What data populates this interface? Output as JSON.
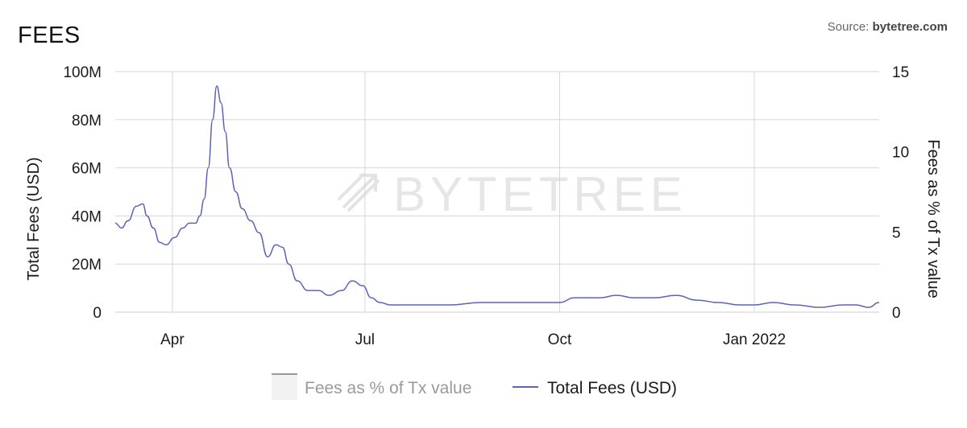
{
  "header": {
    "title": "FEES",
    "source_prefix": "Source: ",
    "source_name": "bytetree.com"
  },
  "watermark": "BYTETREE",
  "colors": {
    "total_fees": "#5b64b7",
    "fees_pct": "#9a9a9a",
    "grid": "#d6d6d6"
  },
  "chart_data": {
    "type": "line",
    "ylabel": "Total Fees (USD)",
    "y2label": "Fees as % of Tx value",
    "ylim": [
      0,
      100
    ],
    "y2lim": [
      0,
      15
    ],
    "xlim": [
      "2021-03-05",
      "2022-03-01"
    ],
    "yticks": [
      {
        "value": 0,
        "label": "0"
      },
      {
        "value": 20,
        "label": "20M"
      },
      {
        "value": 40,
        "label": "40M"
      },
      {
        "value": 60,
        "label": "60M"
      },
      {
        "value": 80,
        "label": "80M"
      },
      {
        "value": 100,
        "label": "100M"
      }
    ],
    "y2ticks": [
      {
        "value": 0,
        "label": "0"
      },
      {
        "value": 5,
        "label": "5"
      },
      {
        "value": 10,
        "label": "10"
      },
      {
        "value": 15,
        "label": "15"
      }
    ],
    "xticks": [
      {
        "date": "2021-04-01",
        "label": "Apr"
      },
      {
        "date": "2021-07-01",
        "label": "Jul"
      },
      {
        "date": "2021-10-01",
        "label": "Oct"
      },
      {
        "date": "2022-01-01",
        "label": "Jan 2022"
      }
    ],
    "grid": true,
    "legend": "bottom-center",
    "series": [
      {
        "name": "Fees as % of Tx value",
        "axis": "right",
        "visible": false,
        "values": []
      },
      {
        "name": "Total Fees (USD)",
        "axis": "left",
        "x": [
          "2021-03-05",
          "2021-03-08",
          "2021-03-11",
          "2021-03-15",
          "2021-03-18",
          "2021-03-20",
          "2021-03-23",
          "2021-03-26",
          "2021-03-29",
          "2021-04-02",
          "2021-04-06",
          "2021-04-09",
          "2021-04-12",
          "2021-04-14",
          "2021-04-16",
          "2021-04-18",
          "2021-04-20",
          "2021-04-22",
          "2021-04-24",
          "2021-04-26",
          "2021-04-28",
          "2021-05-01",
          "2021-05-04",
          "2021-05-08",
          "2021-05-12",
          "2021-05-16",
          "2021-05-20",
          "2021-05-23",
          "2021-05-26",
          "2021-05-30",
          "2021-06-04",
          "2021-06-09",
          "2021-06-14",
          "2021-06-20",
          "2021-06-25",
          "2021-06-30",
          "2021-07-04",
          "2021-07-08",
          "2021-07-13",
          "2021-07-20",
          "2021-07-28",
          "2021-08-10",
          "2021-08-25",
          "2021-09-05",
          "2021-09-15",
          "2021-09-25",
          "2021-10-01",
          "2021-10-08",
          "2021-10-14",
          "2021-10-20",
          "2021-10-28",
          "2021-11-05",
          "2021-11-15",
          "2021-11-25",
          "2021-12-05",
          "2021-12-15",
          "2021-12-25",
          "2022-01-01",
          "2022-01-10",
          "2022-01-20",
          "2022-02-01",
          "2022-02-12",
          "2022-02-18",
          "2022-02-24",
          "2022-03-01"
        ],
        "y": [
          37,
          35,
          38,
          44,
          45,
          40,
          35,
          29,
          28,
          31,
          35,
          37,
          37,
          40,
          47,
          60,
          80,
          94,
          87,
          75,
          60,
          50,
          43,
          38,
          33,
          23,
          28,
          27,
          20,
          13,
          9,
          9,
          7,
          9,
          13,
          11,
          6,
          4,
          3,
          3,
          3,
          3,
          4,
          4,
          4,
          4,
          4,
          6,
          6,
          6,
          7,
          6,
          6,
          7,
          5,
          4,
          3,
          3,
          4,
          3,
          2,
          3,
          3,
          2,
          4
        ]
      }
    ]
  }
}
